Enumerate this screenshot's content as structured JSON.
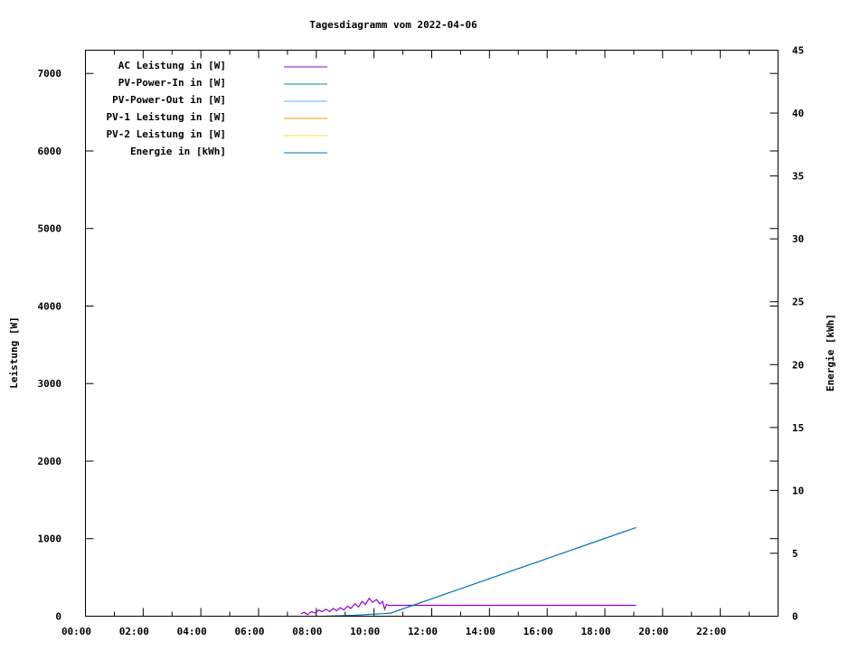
{
  "chart_data": {
    "type": "line",
    "title": "Tagesdiagramm vom 2022-04-06",
    "ylabel": "Leistung [W]",
    "y2label": "Energie [kWh]",
    "xlim": [
      "00:00",
      "24:00"
    ],
    "ylim": [
      0,
      7300
    ],
    "y2lim": [
      0,
      45
    ],
    "xticks": [
      "00:00",
      "02:00",
      "04:00",
      "06:00",
      "08:00",
      "10:00",
      "12:00",
      "14:00",
      "16:00",
      "18:00",
      "20:00",
      "22:00"
    ],
    "yticks": [
      0,
      1000,
      2000,
      3000,
      4000,
      5000,
      6000,
      7000
    ],
    "y2ticks": [
      0,
      5,
      10,
      15,
      20,
      25,
      30,
      35,
      40,
      45
    ],
    "grid": false,
    "legend_position": "top-left",
    "series": [
      {
        "name": "AC Leistung in [W]",
        "axis": "y",
        "color": "#9400d3",
        "points": [
          [
            "07:28",
            30
          ],
          [
            "07:35",
            50
          ],
          [
            "07:42",
            20
          ],
          [
            "07:50",
            60
          ],
          [
            "07:58",
            40
          ],
          [
            "08:05",
            80
          ],
          [
            "08:12",
            60
          ],
          [
            "08:20",
            90
          ],
          [
            "08:28",
            60
          ],
          [
            "08:35",
            100
          ],
          [
            "08:42",
            70
          ],
          [
            "08:50",
            110
          ],
          [
            "08:57",
            80
          ],
          [
            "09:05",
            130
          ],
          [
            "09:12",
            100
          ],
          [
            "09:20",
            160
          ],
          [
            "09:28",
            120
          ],
          [
            "09:35",
            190
          ],
          [
            "09:42",
            150
          ],
          [
            "09:50",
            230
          ],
          [
            "09:57",
            180
          ],
          [
            "10:05",
            215
          ],
          [
            "10:12",
            160
          ],
          [
            "10:18",
            190
          ],
          [
            "10:22",
            90
          ],
          [
            "10:26",
            150
          ],
          [
            "10:30",
            140
          ],
          [
            "19:05",
            140
          ]
        ]
      },
      {
        "name": "PV-Power-In in [W]",
        "axis": "y",
        "color": "#009e73",
        "points": []
      },
      {
        "name": "PV-Power-Out in [W]",
        "axis": "y",
        "color": "#56b4e9",
        "points": []
      },
      {
        "name": "PV-1 Leistung in [W]",
        "axis": "y",
        "color": "#e69f00",
        "points": []
      },
      {
        "name": "PV-2 Leistung in [W]",
        "axis": "y",
        "color": "#f0e442",
        "points": []
      },
      {
        "name": "Energie in [kWh]",
        "axis": "y2",
        "color": "#0072b2",
        "points": [
          [
            "08:20",
            0
          ],
          [
            "09:20",
            0.07
          ],
          [
            "09:55",
            0.15
          ],
          [
            "10:20",
            0.2
          ],
          [
            "10:35",
            0.25
          ],
          [
            "19:05",
            7.05
          ]
        ]
      }
    ]
  }
}
